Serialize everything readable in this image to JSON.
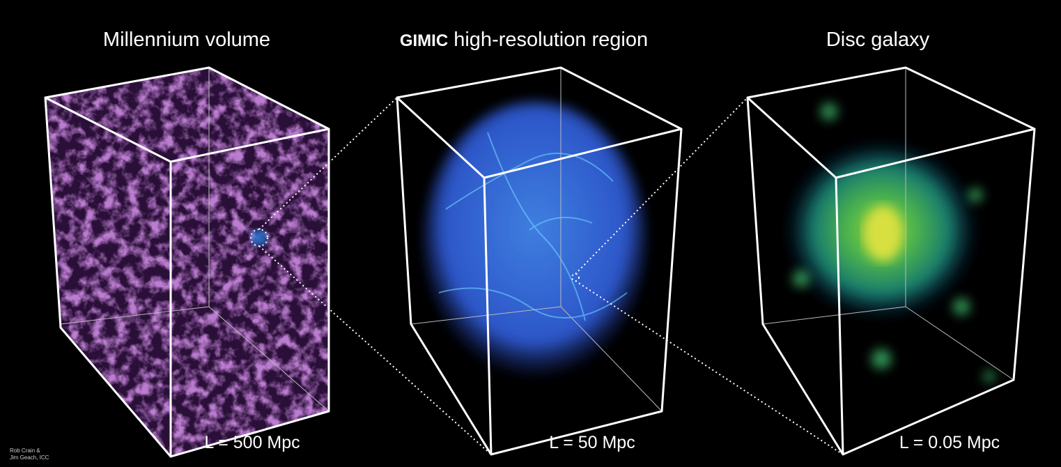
{
  "panels": [
    {
      "title": "Millennium volume",
      "scale": "L = 500 Mpc"
    },
    {
      "title_parts": [
        "GIMIC",
        "high-resolution region"
      ],
      "scale": "L = 50 Mpc"
    },
    {
      "title": "Disc galaxy",
      "scale": "L = 0.05 Mpc"
    }
  ],
  "credit": [
    "Rob Crain &",
    "Jim Geach, ICC"
  ]
}
